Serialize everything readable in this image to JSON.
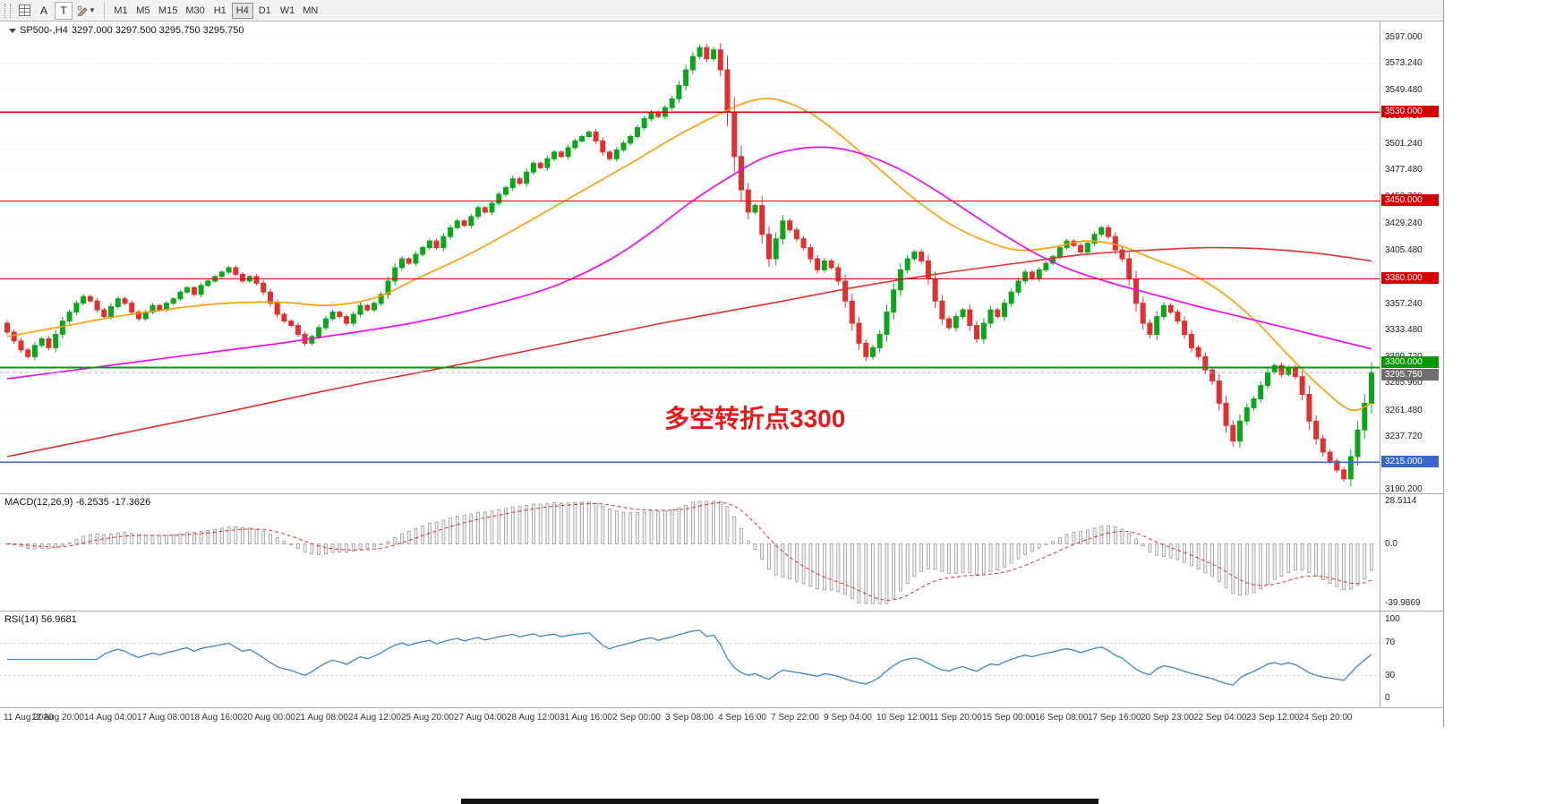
{
  "toolbar": {
    "text_tool_label": "A",
    "label_tool_label": "T",
    "timeframes": [
      "M1",
      "M5",
      "M15",
      "M30",
      "H1",
      "H4",
      "D1",
      "W1",
      "MN"
    ],
    "active_timeframe": "H4"
  },
  "chart": {
    "symbol_label": "SP500-,H4",
    "ohlc_label": "3297.000 3297.500 3295.750 3295.750",
    "annotation": {
      "text": "多空转折点3300",
      "color": "#e41b1b"
    },
    "levels": [
      {
        "price": 3530.0,
        "label": "3530.000",
        "color": "#d40000"
      },
      {
        "price": 3450.0,
        "label": "3450.000",
        "color": "#d40000"
      },
      {
        "price": 3380.0,
        "label": "3380.000",
        "color": "#d40000"
      },
      {
        "price": 3300.0,
        "label": "3300.000",
        "color": "#009a00"
      },
      {
        "price": 3215.0,
        "label": "3215.000",
        "color": "#3a66cc"
      }
    ],
    "current_price": {
      "value": 3295.75,
      "label": "3295.750",
      "box_color": "#6e6e6e"
    },
    "y_ticks": [
      "3597.000",
      "3573.240",
      "3549.480",
      "3525.720",
      "3501.240",
      "3477.480",
      "3453.720",
      "3429.240",
      "3405.480",
      "3381.720",
      "3357.240",
      "3333.480",
      "3309.720",
      "3285.960",
      "3261.480",
      "3237.720",
      "3213.960",
      "3190.200"
    ],
    "x_ticks": [
      "11 Aug 2020",
      "12 Aug 20:00",
      "14 Aug 04:00",
      "17 Aug 08:00",
      "18 Aug 16:00",
      "20 Aug 00:00",
      "21 Aug 08:00",
      "24 Aug 12:00",
      "25 Aug 20:00",
      "27 Aug 04:00",
      "28 Aug 12:00",
      "31 Aug 16:00",
      "2 Sep 00:00",
      "3 Sep 08:00",
      "4 Sep 16:00",
      "7 Sep 22:00",
      "9 Sep 04:00",
      "10 Sep 12:00",
      "11 Sep 20:00",
      "15 Sep 00:00",
      "16 Sep 08:00",
      "17 Sep 16:00",
      "20 Sep 23:00",
      "22 Sep 04:00",
      "23 Sep 12:00",
      "24 Sep 20:00"
    ]
  },
  "chart_data": {
    "type": "candlestick",
    "symbol": "SP500-",
    "timeframe": "H4",
    "y_range": [
      3190.2,
      3597.0
    ],
    "up_color": "#0ca61c",
    "down_color": "#e03030",
    "first_open": 3340,
    "closes": [
      3332,
      3324,
      3316,
      3310,
      3320,
      3326,
      3318,
      3330,
      3342,
      3350,
      3358,
      3364,
      3360,
      3352,
      3346,
      3355,
      3362,
      3358,
      3350,
      3344,
      3350,
      3356,
      3352,
      3358,
      3362,
      3368,
      3372,
      3366,
      3374,
      3378,
      3382,
      3386,
      3390,
      3384,
      3378,
      3382,
      3376,
      3368,
      3358,
      3348,
      3342,
      3338,
      3330,
      3322,
      3328,
      3336,
      3344,
      3350,
      3346,
      3340,
      3348,
      3356,
      3352,
      3358,
      3366,
      3378,
      3390,
      3398,
      3394,
      3402,
      3408,
      3414,
      3408,
      3418,
      3426,
      3432,
      3428,
      3436,
      3444,
      3440,
      3448,
      3456,
      3462,
      3470,
      3466,
      3476,
      3484,
      3480,
      3488,
      3494,
      3490,
      3498,
      3504,
      3508,
      3512,
      3504,
      3494,
      3488,
      3496,
      3502,
      3508,
      3516,
      3524,
      3530,
      3526,
      3534,
      3542,
      3554,
      3568,
      3580,
      3588,
      3578,
      3586,
      3568,
      3530,
      3490,
      3460,
      3440,
      3446,
      3420,
      3398,
      3416,
      3432,
      3424,
      3416,
      3408,
      3398,
      3388,
      3396,
      3390,
      3378,
      3360,
      3340,
      3322,
      3310,
      3318,
      3330,
      3350,
      3370,
      3388,
      3398,
      3404,
      3396,
      3380,
      3360,
      3344,
      3336,
      3346,
      3352,
      3338,
      3326,
      3340,
      3352,
      3346,
      3358,
      3368,
      3378,
      3386,
      3380,
      3388,
      3394,
      3400,
      3408,
      3414,
      3410,
      3404,
      3412,
      3420,
      3426,
      3418,
      3406,
      3398,
      3380,
      3358,
      3340,
      3330,
      3346,
      3356,
      3350,
      3342,
      3330,
      3318,
      3310,
      3298,
      3288,
      3268,
      3248,
      3234,
      3252,
      3264,
      3272,
      3284,
      3296,
      3302,
      3294,
      3300,
      3292,
      3276,
      3252,
      3236,
      3224,
      3216,
      3208,
      3200,
      3220,
      3244,
      3268,
      3295.75
    ],
    "ma_lines": [
      {
        "name": "ma-fast-orange",
        "color": "#ff9c00",
        "points": [
          [
            0,
            3328
          ],
          [
            0.04,
            3337
          ],
          [
            0.08,
            3346
          ],
          [
            0.12,
            3353
          ],
          [
            0.16,
            3358
          ],
          [
            0.2,
            3359
          ],
          [
            0.235,
            3356
          ],
          [
            0.27,
            3363
          ],
          [
            0.3,
            3380
          ],
          [
            0.34,
            3403
          ],
          [
            0.38,
            3430
          ],
          [
            0.42,
            3458
          ],
          [
            0.46,
            3486
          ],
          [
            0.49,
            3508
          ],
          [
            0.52,
            3527
          ],
          [
            0.545,
            3540
          ],
          [
            0.565,
            3541
          ],
          [
            0.59,
            3528
          ],
          [
            0.615,
            3505
          ],
          [
            0.64,
            3478
          ],
          [
            0.665,
            3452
          ],
          [
            0.69,
            3430
          ],
          [
            0.715,
            3415
          ],
          [
            0.74,
            3406
          ],
          [
            0.765,
            3408
          ],
          [
            0.79,
            3414
          ],
          [
            0.815,
            3410
          ],
          [
            0.84,
            3398
          ],
          [
            0.865,
            3386
          ],
          [
            0.89,
            3368
          ],
          [
            0.915,
            3342
          ],
          [
            0.94,
            3310
          ],
          [
            0.965,
            3280
          ],
          [
            0.985,
            3262
          ],
          [
            1,
            3268
          ]
        ]
      },
      {
        "name": "ma-mid-magenta",
        "color": "#f400f4",
        "points": [
          [
            0,
            3290
          ],
          [
            0.05,
            3298
          ],
          [
            0.1,
            3306
          ],
          [
            0.15,
            3314
          ],
          [
            0.2,
            3322
          ],
          [
            0.25,
            3331
          ],
          [
            0.3,
            3341
          ],
          [
            0.35,
            3355
          ],
          [
            0.4,
            3373
          ],
          [
            0.44,
            3396
          ],
          [
            0.47,
            3420
          ],
          [
            0.5,
            3448
          ],
          [
            0.53,
            3472
          ],
          [
            0.555,
            3489
          ],
          [
            0.58,
            3497
          ],
          [
            0.605,
            3498
          ],
          [
            0.63,
            3491
          ],
          [
            0.655,
            3478
          ],
          [
            0.68,
            3460
          ],
          [
            0.705,
            3440
          ],
          [
            0.73,
            3420
          ],
          [
            0.755,
            3402
          ],
          [
            0.78,
            3388
          ],
          [
            0.81,
            3376
          ],
          [
            0.84,
            3366
          ],
          [
            0.87,
            3356
          ],
          [
            0.9,
            3347
          ],
          [
            0.93,
            3338
          ],
          [
            0.96,
            3329
          ],
          [
            1,
            3317
          ]
        ]
      },
      {
        "name": "ma-slow-red",
        "color": "#e03030",
        "points": [
          [
            0,
            3220
          ],
          [
            0.08,
            3240
          ],
          [
            0.16,
            3260
          ],
          [
            0.24,
            3281
          ],
          [
            0.32,
            3300
          ],
          [
            0.4,
            3320
          ],
          [
            0.48,
            3340
          ],
          [
            0.56,
            3358
          ],
          [
            0.62,
            3372
          ],
          [
            0.68,
            3384
          ],
          [
            0.74,
            3394
          ],
          [
            0.79,
            3402
          ],
          [
            0.84,
            3406
          ],
          [
            0.88,
            3408
          ],
          [
            0.92,
            3407
          ],
          [
            0.96,
            3403
          ],
          [
            1,
            3396
          ]
        ]
      }
    ]
  },
  "macd": {
    "name_label": "MACD(12,26,9)",
    "value_label": "-6.2535 -17.3626",
    "fast": 12,
    "slow": 26,
    "signal": 9,
    "scale_max": 28.5114,
    "scale_min": -39.9869,
    "scale_labels": [
      "28.5114",
      "0.0",
      "-39.9869"
    ],
    "signal_color": "#e03030",
    "bar_stroke": "#9a9a9a"
  },
  "rsi": {
    "name_label": "RSI(14)",
    "value_label": "56.9681",
    "period": 14,
    "levels": [
      70,
      30
    ],
    "scale_labels": [
      "100",
      "70",
      "30",
      "0"
    ],
    "color": "#3e86c8"
  }
}
